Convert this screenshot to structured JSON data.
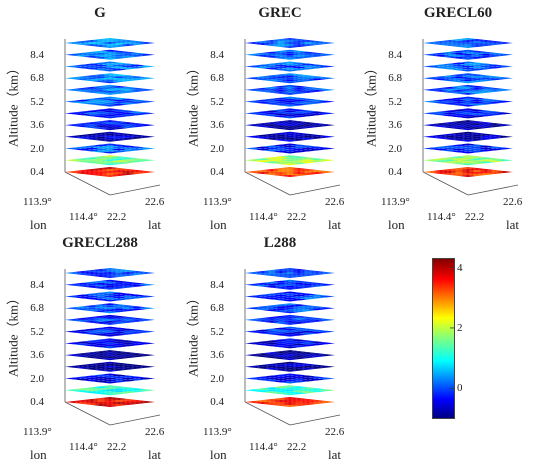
{
  "chart_data": {
    "type": "heatmap",
    "figure_type": "stacked 3D horizontal slices (lon x lat) at altitude levels",
    "panels": [
      {
        "title": "G",
        "levels_km": [
          0.4,
          1.2,
          2.0,
          2.8,
          3.6,
          4.4,
          5.2,
          6.0,
          6.8,
          7.6,
          8.4,
          9.2
        ],
        "slice_mean": [
          3.6,
          1.6,
          0.1,
          -0.6,
          -0.3,
          -0.1,
          0.1,
          0.2,
          0.3,
          0.2,
          0.2,
          0.3
        ]
      },
      {
        "title": "GREC",
        "levels_km": [
          0.4,
          1.2,
          2.0,
          2.8,
          3.6,
          4.4,
          5.2,
          6.0,
          6.8,
          7.6,
          8.4,
          9.2
        ],
        "slice_mean": [
          3.4,
          1.8,
          -0.2,
          -0.7,
          -0.8,
          -0.3,
          -0.1,
          0.0,
          0.1,
          0.1,
          0.0,
          0.1
        ]
      },
      {
        "title": "GRECL60",
        "levels_km": [
          0.4,
          1.2,
          2.0,
          2.8,
          3.6,
          4.4,
          5.2,
          6.0,
          6.8,
          7.6,
          8.4,
          9.2
        ],
        "slice_mean": [
          3.5,
          1.7,
          -0.2,
          -0.8,
          -0.8,
          -0.3,
          0.0,
          0.1,
          0.1,
          0.1,
          0.0,
          0.1
        ]
      },
      {
        "title": "GRECL288",
        "levels_km": [
          0.4,
          1.2,
          2.0,
          2.8,
          3.6,
          4.4,
          5.2,
          6.0,
          6.8,
          7.6,
          8.4,
          9.2
        ],
        "slice_mean": [
          3.7,
          1.2,
          -0.4,
          -0.9,
          -0.9,
          -0.4,
          -0.2,
          -0.1,
          0.0,
          0.0,
          -0.1,
          0.0
        ]
      },
      {
        "title": "L288",
        "levels_km": [
          0.4,
          1.2,
          2.0,
          2.8,
          3.6,
          4.4,
          5.2,
          6.0,
          6.8,
          7.6,
          8.4,
          9.2
        ],
        "slice_mean": [
          3.4,
          1.3,
          -0.3,
          -0.8,
          -0.8,
          -0.4,
          -0.2,
          -0.1,
          0.0,
          0.0,
          -0.1,
          0.0
        ]
      }
    ],
    "ylabel": "Altitude（km）",
    "y_ticks": [
      "0.4",
      "2.0",
      "3.6",
      "5.2",
      "6.8",
      "8.4"
    ],
    "lon_ticks": [
      "113.9°",
      "114.4°"
    ],
    "lat_ticks": [
      "22.2",
      "22.6"
    ],
    "xlabel": "lon",
    "zlabel": "lat",
    "colorbar": {
      "range": [
        -1,
        4.3
      ],
      "ticks": [
        "4",
        "2",
        "0"
      ],
      "tick_values": [
        4,
        2,
        0
      ],
      "colormap": "jet"
    }
  }
}
